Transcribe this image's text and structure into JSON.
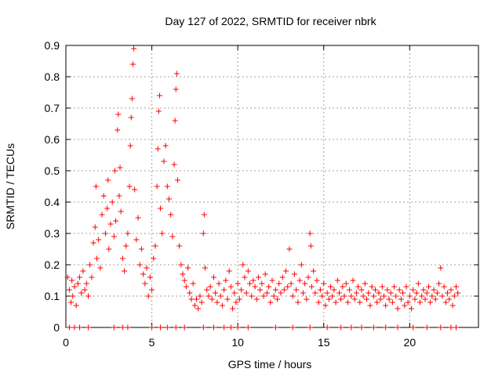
{
  "chart_data": {
    "type": "scatter",
    "title": "Day 127 of 2022, SRMTID for receiver nbrk",
    "xlabel": "GPS time / hours",
    "ylabel": "SRMTID / TECUs",
    "xlim": [
      0,
      24
    ],
    "ylim": [
      0,
      0.9
    ],
    "xticks": [
      0,
      5,
      10,
      15,
      20
    ],
    "xtick_labels": [
      "0",
      "5",
      "10",
      "15",
      "20"
    ],
    "yticks": [
      0,
      0.1,
      0.2,
      0.3,
      0.4,
      0.5,
      0.6,
      0.7,
      0.8,
      0.9
    ],
    "ytick_labels": [
      "0",
      "0.1",
      "0.2",
      "0.3",
      "0.4",
      "0.5",
      "0.6",
      "0.7",
      "0.8",
      "0.9"
    ],
    "grid": true,
    "marker": "+",
    "color": "#ff0000",
    "series": [
      {
        "name": "SRMTID",
        "points": [
          [
            0.1,
            0.16
          ],
          [
            0.2,
            0.12
          ],
          [
            0.3,
            0.08
          ],
          [
            0.35,
            0.15
          ],
          [
            0.4,
            0.1
          ],
          [
            0.5,
            0.13
          ],
          [
            0.6,
            0.07
          ],
          [
            0.7,
            0.14
          ],
          [
            0.8,
            0.16
          ],
          [
            0.9,
            0.11
          ],
          [
            1.0,
            0.18
          ],
          [
            1.1,
            0.12
          ],
          [
            1.2,
            0.14
          ],
          [
            1.3,
            0.1
          ],
          [
            1.4,
            0.2
          ],
          [
            1.5,
            0.16
          ],
          [
            1.6,
            0.27
          ],
          [
            1.7,
            0.32
          ],
          [
            1.75,
            0.45
          ],
          [
            1.8,
            0.22
          ],
          [
            1.9,
            0.28
          ],
          [
            2.0,
            0.19
          ],
          [
            2.1,
            0.36
          ],
          [
            2.2,
            0.42
          ],
          [
            2.3,
            0.3
          ],
          [
            2.4,
            0.38
          ],
          [
            2.45,
            0.47
          ],
          [
            2.5,
            0.25
          ],
          [
            2.6,
            0.33
          ],
          [
            2.7,
            0.4
          ],
          [
            2.8,
            0.29
          ],
          [
            2.85,
            0.5
          ],
          [
            2.9,
            0.34
          ],
          [
            3.0,
            0.63
          ],
          [
            3.05,
            0.68
          ],
          [
            3.1,
            0.42
          ],
          [
            3.15,
            0.51
          ],
          [
            3.2,
            0.37
          ],
          [
            3.3,
            0.22
          ],
          [
            3.4,
            0.18
          ],
          [
            3.5,
            0.26
          ],
          [
            3.6,
            0.3
          ],
          [
            3.7,
            0.45
          ],
          [
            3.75,
            0.58
          ],
          [
            3.8,
            0.67
          ],
          [
            3.85,
            0.73
          ],
          [
            3.9,
            0.84
          ],
          [
            3.95,
            0.89
          ],
          [
            4.0,
            0.44
          ],
          [
            4.1,
            0.28
          ],
          [
            4.2,
            0.35
          ],
          [
            4.3,
            0.2
          ],
          [
            4.4,
            0.25
          ],
          [
            4.5,
            0.17
          ],
          [
            4.6,
            0.14
          ],
          [
            4.7,
            0.19
          ],
          [
            4.8,
            0.1
          ],
          [
            4.9,
            0.16
          ],
          [
            5.0,
            0.12
          ],
          [
            5.1,
            0.22
          ],
          [
            5.2,
            0.26
          ],
          [
            5.3,
            0.45
          ],
          [
            5.35,
            0.57
          ],
          [
            5.4,
            0.69
          ],
          [
            5.45,
            0.74
          ],
          [
            5.5,
            0.38
          ],
          [
            5.6,
            0.3
          ],
          [
            5.7,
            0.53
          ],
          [
            5.8,
            0.58
          ],
          [
            5.9,
            0.45
          ],
          [
            6.0,
            0.41
          ],
          [
            6.1,
            0.36
          ],
          [
            6.2,
            0.29
          ],
          [
            6.3,
            0.52
          ],
          [
            6.35,
            0.66
          ],
          [
            6.4,
            0.76
          ],
          [
            6.45,
            0.81
          ],
          [
            6.5,
            0.47
          ],
          [
            6.6,
            0.26
          ],
          [
            6.7,
            0.2
          ],
          [
            6.8,
            0.17
          ],
          [
            6.9,
            0.15
          ],
          [
            7.0,
            0.13
          ],
          [
            7.1,
            0.19
          ],
          [
            7.2,
            0.11
          ],
          [
            7.3,
            0.09
          ],
          [
            7.4,
            0.14
          ],
          [
            7.5,
            0.07
          ],
          [
            7.6,
            0.09
          ],
          [
            7.7,
            0.06
          ],
          [
            7.8,
            0.1
          ],
          [
            7.9,
            0.08
          ],
          [
            8.0,
            0.3
          ],
          [
            8.05,
            0.36
          ],
          [
            8.1,
            0.19
          ],
          [
            8.2,
            0.12
          ],
          [
            8.3,
            0.1
          ],
          [
            8.4,
            0.13
          ],
          [
            8.5,
            0.09
          ],
          [
            8.6,
            0.16
          ],
          [
            8.7,
            0.11
          ],
          [
            8.8,
            0.08
          ],
          [
            8.9,
            0.14
          ],
          [
            9.0,
            0.1
          ],
          [
            9.1,
            0.07
          ],
          [
            9.2,
            0.12
          ],
          [
            9.3,
            0.15
          ],
          [
            9.4,
            0.09
          ],
          [
            9.5,
            0.18
          ],
          [
            9.6,
            0.13
          ],
          [
            9.7,
            0.06
          ],
          [
            9.8,
            0.11
          ],
          [
            9.9,
            0.08
          ],
          [
            10.0,
            0.14
          ],
          [
            10.1,
            0.09
          ],
          [
            10.2,
            0.12
          ],
          [
            10.3,
            0.2
          ],
          [
            10.4,
            0.16
          ],
          [
            10.5,
            0.11
          ],
          [
            10.6,
            0.18
          ],
          [
            10.7,
            0.14
          ],
          [
            10.8,
            0.1
          ],
          [
            10.9,
            0.15
          ],
          [
            11.0,
            0.13
          ],
          [
            11.1,
            0.09
          ],
          [
            11.2,
            0.16
          ],
          [
            11.3,
            0.12
          ],
          [
            11.4,
            0.14
          ],
          [
            11.5,
            0.1
          ],
          [
            11.6,
            0.17
          ],
          [
            11.7,
            0.11
          ],
          [
            11.8,
            0.13
          ],
          [
            11.9,
            0.08
          ],
          [
            12.0,
            0.15
          ],
          [
            12.1,
            0.1
          ],
          [
            12.2,
            0.12
          ],
          [
            12.3,
            0.09
          ],
          [
            12.4,
            0.14
          ],
          [
            12.5,
            0.11
          ],
          [
            12.6,
            0.16
          ],
          [
            12.7,
            0.12
          ],
          [
            12.8,
            0.18
          ],
          [
            12.9,
            0.13
          ],
          [
            13.0,
            0.25
          ],
          [
            13.1,
            0.14
          ],
          [
            13.2,
            0.1
          ],
          [
            13.3,
            0.17
          ],
          [
            13.4,
            0.12
          ],
          [
            13.5,
            0.08
          ],
          [
            13.6,
            0.15
          ],
          [
            13.7,
            0.2
          ],
          [
            13.8,
            0.11
          ],
          [
            13.9,
            0.14
          ],
          [
            14.0,
            0.09
          ],
          [
            14.1,
            0.16
          ],
          [
            14.2,
            0.3
          ],
          [
            14.25,
            0.26
          ],
          [
            14.3,
            0.13
          ],
          [
            14.4,
            0.18
          ],
          [
            14.5,
            0.11
          ],
          [
            14.6,
            0.15
          ],
          [
            14.7,
            0.08
          ],
          [
            14.8,
            0.12
          ],
          [
            14.9,
            0.1
          ],
          [
            15.0,
            0.14
          ],
          [
            15.1,
            0.07
          ],
          [
            15.2,
            0.11
          ],
          [
            15.3,
            0.09
          ],
          [
            15.4,
            0.13
          ],
          [
            15.5,
            0.1
          ],
          [
            15.6,
            0.12
          ],
          [
            15.7,
            0.08
          ],
          [
            15.8,
            0.15
          ],
          [
            15.9,
            0.11
          ],
          [
            16.0,
            0.09
          ],
          [
            16.1,
            0.13
          ],
          [
            16.2,
            0.1
          ],
          [
            16.3,
            0.14
          ],
          [
            16.4,
            0.08
          ],
          [
            16.5,
            0.12
          ],
          [
            16.6,
            0.1
          ],
          [
            16.7,
            0.15
          ],
          [
            16.8,
            0.09
          ],
          [
            16.9,
            0.11
          ],
          [
            17.0,
            0.13
          ],
          [
            17.1,
            0.08
          ],
          [
            17.2,
            0.12
          ],
          [
            17.3,
            0.1
          ],
          [
            17.4,
            0.14
          ],
          [
            17.5,
            0.09
          ],
          [
            17.6,
            0.11
          ],
          [
            17.7,
            0.07
          ],
          [
            17.8,
            0.13
          ],
          [
            17.9,
            0.1
          ],
          [
            18.0,
            0.12
          ],
          [
            18.1,
            0.08
          ],
          [
            18.2,
            0.11
          ],
          [
            18.3,
            0.09
          ],
          [
            18.4,
            0.13
          ],
          [
            18.5,
            0.1
          ],
          [
            18.6,
            0.07
          ],
          [
            18.7,
            0.12
          ],
          [
            18.8,
            0.09
          ],
          [
            18.9,
            0.11
          ],
          [
            19.0,
            0.08
          ],
          [
            19.1,
            0.13
          ],
          [
            19.2,
            0.1
          ],
          [
            19.3,
            0.06
          ],
          [
            19.4,
            0.12
          ],
          [
            19.5,
            0.09
          ],
          [
            19.6,
            0.11
          ],
          [
            19.7,
            0.07
          ],
          [
            19.8,
            0.13
          ],
          [
            19.9,
            0.08
          ],
          [
            20.0,
            0.1
          ],
          [
            20.1,
            0.06
          ],
          [
            20.2,
            0.12
          ],
          [
            20.3,
            0.09
          ],
          [
            20.4,
            0.11
          ],
          [
            20.5,
            0.14
          ],
          [
            20.6,
            0.08
          ],
          [
            20.7,
            0.1
          ],
          [
            20.8,
            0.12
          ],
          [
            20.9,
            0.09
          ],
          [
            21.0,
            0.11
          ],
          [
            21.1,
            0.13
          ],
          [
            21.2,
            0.08
          ],
          [
            21.3,
            0.1
          ],
          [
            21.4,
            0.12
          ],
          [
            21.5,
            0.09
          ],
          [
            21.6,
            0.11
          ],
          [
            21.7,
            0.14
          ],
          [
            21.8,
            0.19
          ],
          [
            21.9,
            0.1
          ],
          [
            22.0,
            0.13
          ],
          [
            22.1,
            0.08
          ],
          [
            22.2,
            0.11
          ],
          [
            22.3,
            0.09
          ],
          [
            22.4,
            0.12
          ],
          [
            22.5,
            0.07
          ],
          [
            22.6,
            0.1
          ],
          [
            22.7,
            0.13
          ],
          [
            22.8,
            0.11
          ],
          [
            0.2,
            0.0
          ],
          [
            0.5,
            0.0
          ],
          [
            0.8,
            0.0
          ],
          [
            1.3,
            0.0
          ],
          [
            2.8,
            0.0
          ],
          [
            3.3,
            0.0
          ],
          [
            3.6,
            0.0
          ],
          [
            5.0,
            0.0
          ],
          [
            5.5,
            0.0
          ],
          [
            5.9,
            0.0
          ],
          [
            6.4,
            0.0
          ],
          [
            6.9,
            0.0
          ],
          [
            8.0,
            0.0
          ],
          [
            8.6,
            0.0
          ],
          [
            9.2,
            0.0
          ],
          [
            9.6,
            0.0
          ],
          [
            10.0,
            0.0
          ],
          [
            10.6,
            0.0
          ],
          [
            12.2,
            0.0
          ],
          [
            13.2,
            0.0
          ],
          [
            14.2,
            0.0
          ],
          [
            15.2,
            0.0
          ],
          [
            16.0,
            0.0
          ],
          [
            16.6,
            0.0
          ],
          [
            17.2,
            0.0
          ],
          [
            17.9,
            0.0
          ],
          [
            18.6,
            0.0
          ],
          [
            19.3,
            0.0
          ],
          [
            20.2,
            0.0
          ],
          [
            21.0,
            0.0
          ],
          [
            21.8,
            0.0
          ],
          [
            22.4,
            0.0
          ],
          [
            22.7,
            0.0
          ]
        ]
      }
    ]
  }
}
